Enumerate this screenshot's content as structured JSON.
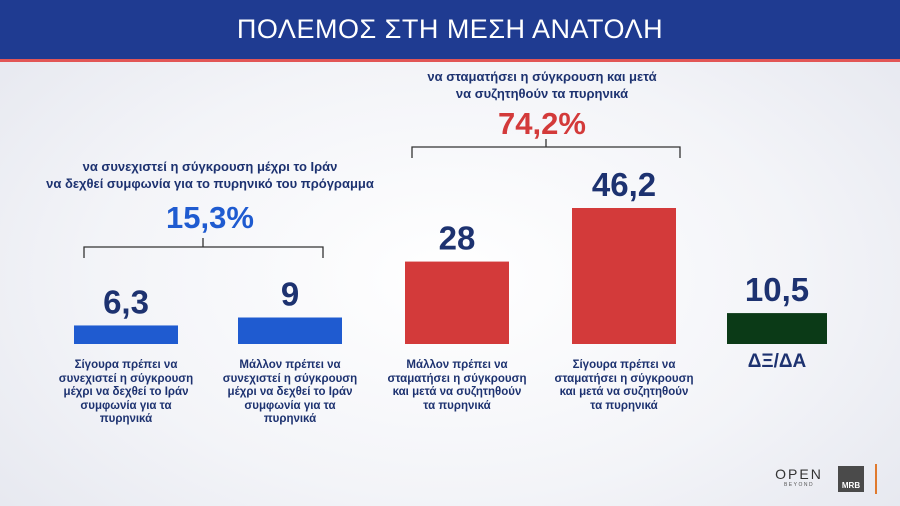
{
  "header": {
    "title": "ΠΟΛΕΜΟΣ ΣΤΗ ΜΕΣΗ ΑΝΑΤΟΛΗ"
  },
  "groups": [
    {
      "text_line1": "να συνεχιστεί η σύγκρουση μέχρι το Ιράν",
      "text_line2": "να δεχθεί συμφωνία για το πυρηνικό του πρόγραμμα",
      "percent": "15,3%",
      "color": "#1f5bd0"
    },
    {
      "text_line1": "να σταματήσει η σύγκρουση και μετά",
      "text_line2": "να συζητηθούν τα πυρηνικά",
      "percent": "74,2%",
      "color": "#d33a3a"
    }
  ],
  "chart_data": {
    "type": "bar",
    "categories": [
      "Σίγουρα πρέπει να συνεχιστεί η σύγκρουση μέχρι να δεχθεί το Ιράν συμφωνία για τα πυρηνικά",
      "Μάλλον πρέπει να συνεχιστεί η σύγκρουση μέχρι να δεχθεί το Ιράν συμφωνία για τα πυρηνικά",
      "Μάλλον πρέπει να σταματήσει η σύγκρουση και μετά να συζητηθούν τα πυρηνικά",
      "Σίγουρα πρέπει να σταματήσει η σύγκρουση και μετά να συζητηθούν τα πυρηνικά",
      "ΔΞ/ΔΑ"
    ],
    "values": [
      6.3,
      9,
      28,
      46.2,
      10.5
    ],
    "value_labels": [
      "6,3",
      "9",
      "28",
      "46,2",
      "10,5"
    ],
    "category_lines": [
      [
        "Σίγουρα πρέπει να",
        "συνεχιστεί η σύγκρουση",
        "μέχρι να δεχθεί το Ιράν",
        "συμφωνία για τα",
        "πυρηνικά"
      ],
      [
        "Μάλλον πρέπει να",
        "συνεχιστεί η σύγκρουση",
        "μέχρι να δεχθεί το Ιράν",
        "συμφωνία για τα",
        "πυρηνικά"
      ],
      [
        "Μάλλον πρέπει να",
        "σταματήσει η σύγκρουση",
        "και μετά να συζητηθούν",
        "τα πυρηνικά"
      ],
      [
        "Σίγουρα πρέπει να",
        "σταματήσει η σύγκρουση",
        "και μετά να συζητηθούν",
        "τα πυρηνικά"
      ],
      [
        "ΔΞ/ΔΑ"
      ]
    ],
    "colors": [
      "#1f5bd0",
      "#1f5bd0",
      "#d33a3a",
      "#d33a3a",
      "#0b3a17"
    ],
    "value_color": "#1d3270",
    "ylim": [
      0,
      50
    ]
  },
  "logos": {
    "open": "OPEN",
    "open_sub": "BEYOND",
    "mrb": "MRB"
  }
}
